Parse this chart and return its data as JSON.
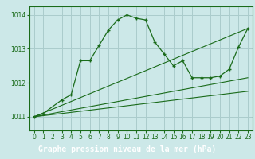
{
  "bg_color": "#cce8e8",
  "grid_color": "#aacccc",
  "line_color": "#1a6b1a",
  "label_bg": "#2d8c2d",
  "title": "Graphe pression niveau de la mer (hPa)",
  "xlim": [
    -0.5,
    23.5
  ],
  "ylim": [
    1010.6,
    1014.25
  ],
  "xticks": [
    0,
    1,
    2,
    3,
    4,
    5,
    6,
    7,
    8,
    9,
    10,
    11,
    12,
    13,
    14,
    15,
    16,
    17,
    18,
    19,
    20,
    21,
    22,
    23
  ],
  "yticks": [
    1011,
    1012,
    1013,
    1014
  ],
  "series1_x": [
    0,
    1,
    3,
    4,
    5,
    6,
    7,
    8,
    9,
    10,
    11,
    12,
    13,
    14,
    15,
    16,
    17,
    18,
    19,
    20,
    21,
    22,
    23
  ],
  "series1_y": [
    1011.0,
    1011.1,
    1011.5,
    1011.65,
    1012.65,
    1012.65,
    1013.1,
    1013.55,
    1013.85,
    1014.0,
    1013.9,
    1013.85,
    1013.2,
    1012.85,
    1012.5,
    1012.65,
    1012.15,
    1012.15,
    1012.15,
    1012.2,
    1012.4,
    1013.05,
    1013.6
  ],
  "series2_x": [
    0,
    23
  ],
  "series2_y": [
    1011.0,
    1013.6
  ],
  "series3_x": [
    0,
    23
  ],
  "series3_y": [
    1011.0,
    1012.15
  ],
  "series4_x": [
    0,
    23
  ],
  "series4_y": [
    1011.0,
    1011.75
  ],
  "title_fontsize": 7,
  "tick_fontsize": 5.5
}
